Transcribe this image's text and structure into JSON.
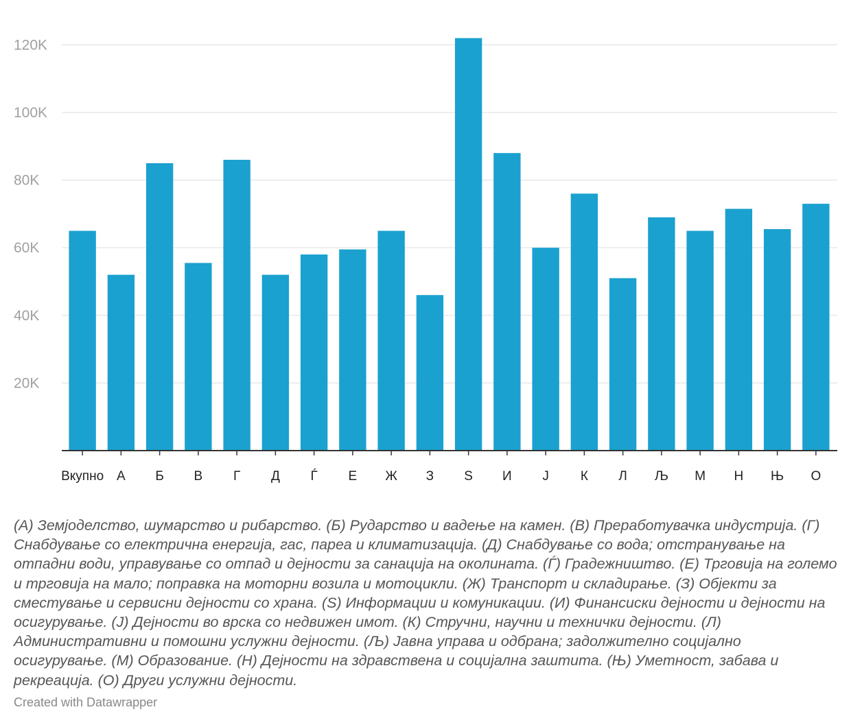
{
  "chart_data": {
    "type": "bar",
    "categories": [
      "Вкупно",
      "А",
      "Б",
      "В",
      "Г",
      "Д",
      "Ѓ",
      "Е",
      "Ж",
      "З",
      "S",
      "И",
      "Ј",
      "К",
      "Л",
      "Љ",
      "М",
      "Н",
      "Њ",
      "О"
    ],
    "values": [
      65000,
      52000,
      85000,
      55500,
      86000,
      52000,
      58000,
      59500,
      65000,
      46000,
      122000,
      88000,
      60000,
      76000,
      51000,
      69000,
      65000,
      71500,
      65500,
      73000
    ],
    "yticks": [
      20000,
      40000,
      60000,
      80000,
      100000,
      120000
    ],
    "ytick_labels": [
      "20K",
      "40K",
      "60K",
      "80K",
      "100K",
      "120K"
    ],
    "ylim": [
      0,
      124000
    ],
    "title": "",
    "xlabel": "",
    "ylabel": "",
    "grid": true,
    "bar_color": "#1aa1cf"
  },
  "notes": "(А) Земјоделство, шумарство и рибарство. (Б) Рударство и вадење на камен. (В) Преработувачка индустрија. (Г) Снабдување со електрична енергија, гас, пареа и климатизација. (Д) Снабдување со вода; отстранување на отпадни води, управување со отпад и дејности за санација на околината. (Ѓ) Градежништво. (Е) Трговија на големо и трговија на мало; поправка на моторни возила и мотоцикли. (Ж) Транспорт и складирање. (З) Објекти за сместување и сервисни дејности со храна. (S) Информации и комуникации. (И) Финансиски дејности и дејности на осигурување. (Ј) Дејности во врска со недвижен имот. (К) Стручни, научни и технички дејности. (Л) Административни и помошни услужни дејности. (Љ) Јавна управа и одбрана; задолжително социјално осигурување. (М) Образование. (Н) Дејности на здравствена и социјална заштита. (Њ) Уметност, забава и рекреација. (О) Други услужни дејности.",
  "credit": "Created with Datawrapper"
}
